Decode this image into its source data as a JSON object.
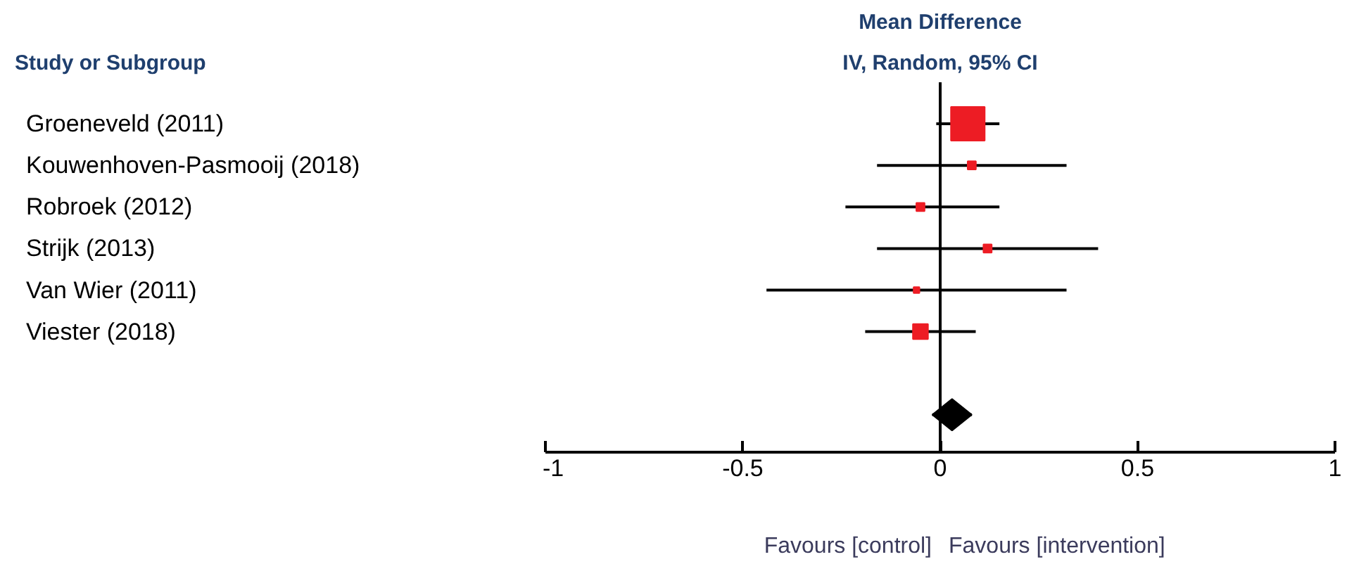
{
  "chart_data": {
    "type": "scatter",
    "orientation": "horizontal",
    "title": "Mean Difference",
    "subtitle": "IV, Random, 95% CI",
    "categories": [
      "Groeneveld (2011)",
      "Kouwenhoven-Pasmooij (2018)",
      "Robroek (2012)",
      "Strijk (2013)",
      "Van Wier (2011)",
      "Viester (2018)",
      null,
      null
    ],
    "xlim": [
      -1,
      1
    ],
    "xticks": [
      -1,
      -0.5,
      0,
      0.5,
      1
    ],
    "ref_lines": [
      {
        "axis": "x",
        "value": 0,
        "color": "#000000"
      }
    ],
    "annotations": [
      "Study or Subgroup",
      "Favours [control]",
      "Favours [intervention]"
    ],
    "series": [
      {
        "type": "bubble",
        "marker": "square",
        "color": "#ed1c24",
        "values": [
          0.07,
          0.08,
          -0.05,
          0.12,
          -0.06,
          -0.05,
          null,
          null
        ],
        "errors": [
          [
            -0.01,
            0.15
          ],
          [
            -0.16,
            0.32
          ],
          [
            -0.24,
            0.15
          ],
          [
            -0.16,
            0.4
          ],
          [
            -0.44,
            0.32
          ],
          [
            -0.19,
            0.09
          ],
          null,
          null
        ],
        "sizes": [
          1,
          0.06,
          0.06,
          0.06,
          0.03,
          0.2,
          null,
          null
        ]
      },
      {
        "marker": "diamond",
        "color": "#000000",
        "values": [
          null,
          null,
          null,
          null,
          null,
          null,
          null,
          0.03
        ],
        "errors": [
          null,
          null,
          null,
          null,
          null,
          null,
          null,
          [
            -0.02,
            0.08
          ]
        ]
      }
    ]
  }
}
